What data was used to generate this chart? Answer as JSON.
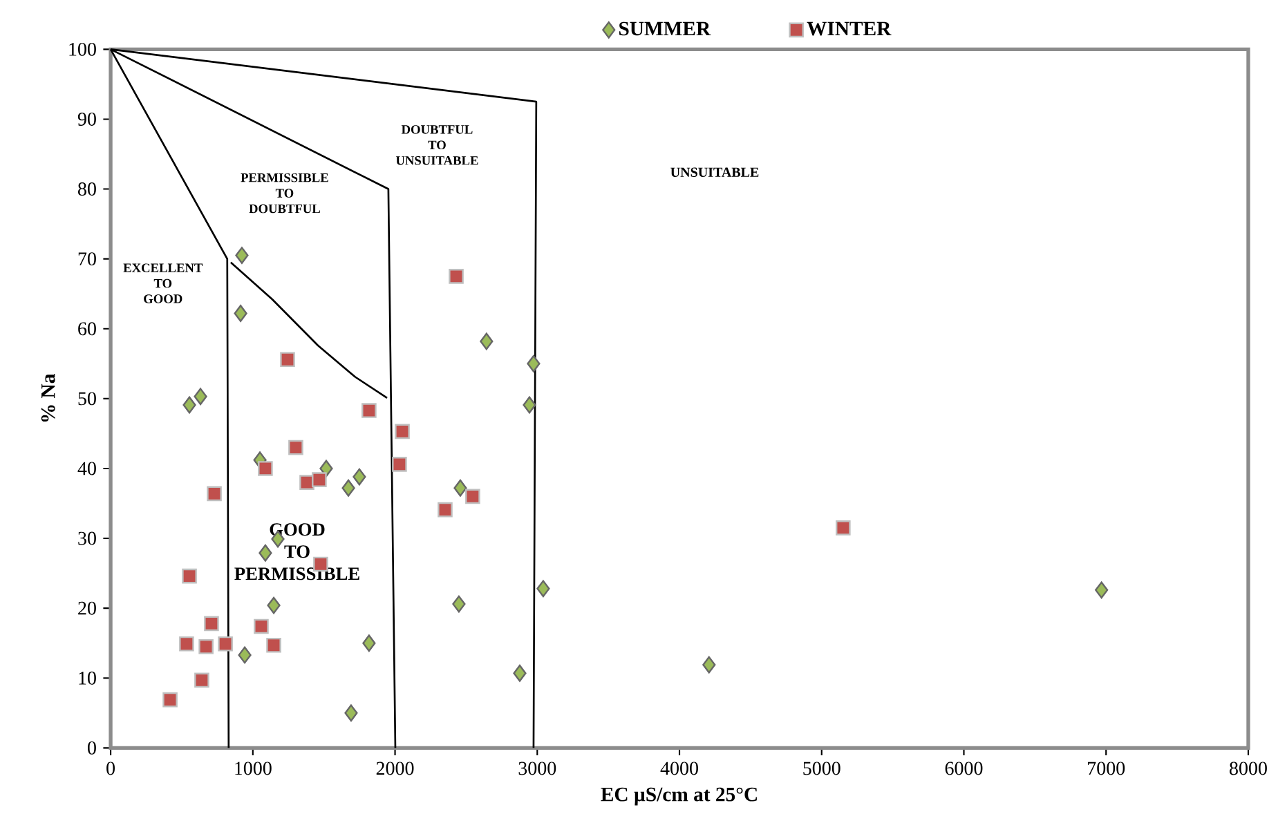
{
  "chart_data": {
    "type": "scatter",
    "xlabel": "EC µS/cm at 25°C",
    "ylabel": "% Na",
    "xlim": [
      0,
      8000
    ],
    "ylim": [
      0,
      100
    ],
    "xticks": [
      0,
      1000,
      2000,
      3000,
      4000,
      5000,
      6000,
      7000,
      8000
    ],
    "yticks": [
      0,
      10,
      20,
      30,
      40,
      50,
      60,
      70,
      80,
      90,
      100
    ],
    "grid": false,
    "legend": "top",
    "series": [
      {
        "name": "SUMMER",
        "color": "#9bbb59",
        "marker": "diamond",
        "x": [
          923,
          914,
          554,
          632,
          1050,
          1516,
          1672,
          1749,
          2459,
          2643,
          2974,
          2945,
          1088,
          1176,
          1147,
          2449,
          3042,
          943,
          1817,
          2877,
          1691,
          4208,
          6968
        ],
        "values": [
          70.5,
          62.2,
          49.1,
          50.3,
          41.2,
          40.0,
          37.2,
          38.8,
          37.2,
          58.2,
          55.0,
          49.1,
          27.9,
          29.9,
          20.4,
          20.6,
          22.8,
          13.3,
          15.0,
          10.7,
          5.0,
          11.9,
          22.6
        ]
      },
      {
        "name": "WINTER",
        "color": "#c0504d",
        "marker": "square",
        "x": [
          2430,
          1244,
          1817,
          2051,
          2031,
          1302,
          1088,
          1380,
          1467,
          729,
          2546,
          2352,
          1477,
          554,
          709,
          1059,
          534,
          671,
          807,
          1147,
          641,
          418,
          5151
        ],
        "values": [
          67.5,
          55.6,
          48.3,
          45.3,
          40.6,
          43.0,
          40.0,
          38.0,
          38.4,
          36.4,
          36.0,
          34.1,
          26.3,
          24.6,
          17.8,
          17.4,
          14.9,
          14.5,
          14.9,
          14.7,
          9.7,
          6.9,
          31.5
        ]
      },
      {
        "type": "line",
        "color": "#000000",
        "line_style": "solid",
        "x": [
          0,
          820,
          830
        ],
        "values": [
          100,
          70,
          0
        ]
      },
      {
        "type": "line",
        "color": "#000000",
        "line_style": "solid",
        "x": [
          845,
          1137,
          1458,
          1720,
          1944
        ],
        "values": [
          69.5,
          64.2,
          57.6,
          53.1,
          50.1
        ]
      },
      {
        "type": "line",
        "color": "#000000",
        "line_style": "solid",
        "x": [
          0,
          1953,
          2002
        ],
        "values": [
          100,
          80,
          0
        ]
      },
      {
        "type": "line",
        "color": "#000000",
        "line_style": "solid",
        "x": [
          0,
          2993,
          2974
        ],
        "values": [
          100,
          92.5,
          0
        ]
      }
    ],
    "annotations": [
      "EXCELLENT TO GOOD",
      "PERMISSIBLE TO DOUBTFUL",
      "DOUBTFUL TO UNSUITABLE",
      "UNSUITABLE",
      "GOOD TO PERMISSIBLE"
    ]
  }
}
